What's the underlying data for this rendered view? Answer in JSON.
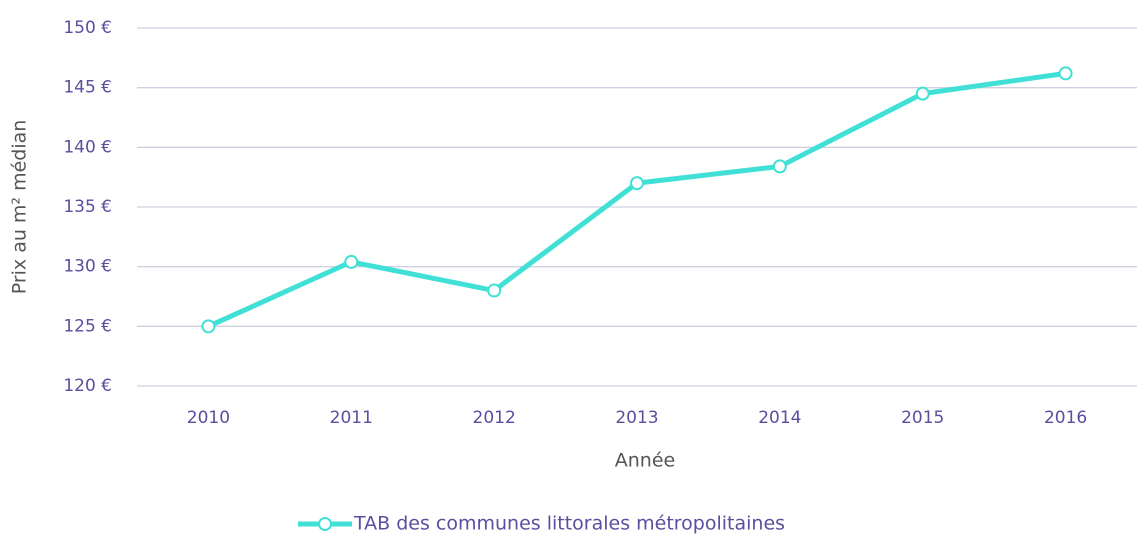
{
  "chart_data": {
    "type": "line",
    "x_label": "Année",
    "y_label": "Prix au m² médian",
    "categories": [
      "2010",
      "2011",
      "2012",
      "2013",
      "2014",
      "2015",
      "2016"
    ],
    "series": [
      {
        "name": "TAB des communes littorales métropolitaines",
        "color": "#40e0d6",
        "values": [
          125,
          130.4,
          128,
          137,
          138.4,
          144.5,
          146.2
        ]
      }
    ],
    "ylim": [
      120,
      150
    ],
    "yticks": [
      {
        "value": 120,
        "label": "120 €"
      },
      {
        "value": 125,
        "label": "125 €"
      },
      {
        "value": 130,
        "label": "130 €"
      },
      {
        "value": 135,
        "label": "135 €"
      },
      {
        "value": 140,
        "label": "140 €"
      },
      {
        "value": 145,
        "label": "145 €"
      },
      {
        "value": 150,
        "label": "150 €"
      }
    ],
    "grid": true,
    "legend": "bottom"
  }
}
